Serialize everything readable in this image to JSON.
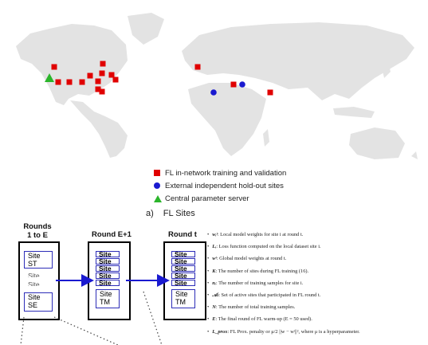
{
  "legend": [
    {
      "symbol": "red-square",
      "label": "FL in-network training and validation"
    },
    {
      "symbol": "blue-circle",
      "label": "External independent hold-out sites"
    },
    {
      "symbol": "green-triangle",
      "label": "Central parameter server"
    }
  ],
  "caption": {
    "label": "a)",
    "text": "FL Sites"
  },
  "colors": {
    "training": "#e00000",
    "holdout": "#1a1ad0",
    "server": "#2bb52b",
    "land": "#e3e3e3",
    "site_border": "#2d2db8"
  },
  "rounds": [
    {
      "title_lines": [
        "Rounds",
        "1 to E"
      ],
      "sites": [
        "Site\nST",
        "Site\nSE"
      ],
      "faint": [
        "Site",
        "Site"
      ]
    },
    {
      "title_lines": [
        "Round E+1"
      ],
      "tabs": [
        "Site",
        "Site",
        "Site",
        "Site",
        "Site"
      ],
      "last": "Site\nTM"
    },
    {
      "title_lines": [
        "Round t"
      ],
      "tabs": [
        "Site",
        "Site",
        "Site",
        "Site",
        "Site"
      ],
      "last": "Site\nTM"
    }
  ],
  "notation": [
    {
      "sym": "wᵢᵗ",
      "text": ": Local model weights for site i at round t."
    },
    {
      "sym": "Lᵢ",
      "text": ": Loss function computed on the local dataset site i."
    },
    {
      "sym": "wᵗ",
      "text": ": Global model weights at round t."
    },
    {
      "sym": "K",
      "text": ": The number of sites during FL training (16)."
    },
    {
      "sym": "nᵢ",
      "text": ": The number of training samples for site i."
    },
    {
      "sym": "𝒜ₜ",
      "text": ": Set of active sites that participated in FL round t."
    },
    {
      "sym": "N",
      "text": ": The number of total training samples."
    },
    {
      "sym": "E",
      "text": ": The final round of FL warm-up (E = 50 used)."
    },
    {
      "sym": "L_prox",
      "text": ": FL Prox. penalty or μ/2 ||w − wᵗ||², where μ is a hyperparameter."
    }
  ]
}
